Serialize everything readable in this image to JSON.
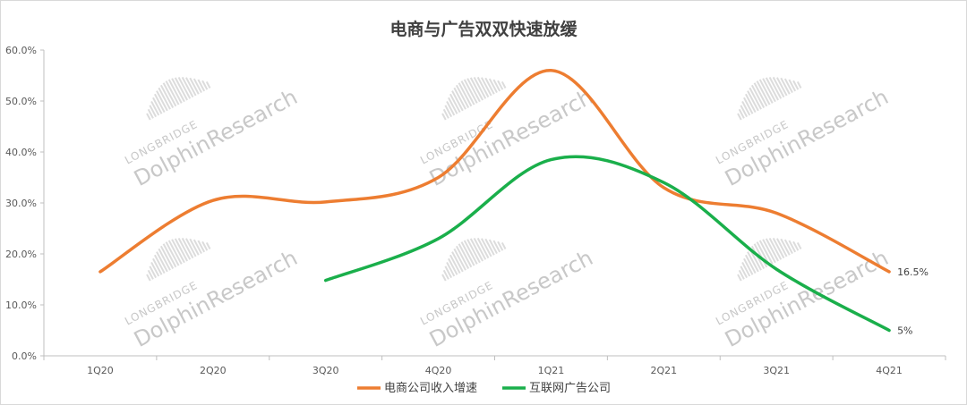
{
  "chart_data": {
    "type": "line",
    "title": "电商与广告双双快速放缓",
    "categories": [
      "1Q20",
      "2Q20",
      "3Q20",
      "4Q20",
      "1Q21",
      "2Q21",
      "3Q21",
      "4Q21"
    ],
    "ylim": [
      0,
      60
    ],
    "yticks": [
      "0.0%",
      "10.0%",
      "20.0%",
      "30.0%",
      "40.0%",
      "50.0%",
      "60.0%"
    ],
    "grid": false,
    "legend_position": "bottom",
    "series": [
      {
        "name": "电商公司收入增速",
        "color": "#ed7d31",
        "values": [
          16.5,
          30.5,
          30.2,
          35.0,
          56.0,
          33.0,
          28.0,
          16.5
        ],
        "end_label": "16.5%"
      },
      {
        "name": "互联网广告公司",
        "color": "#1aaf4b",
        "values": [
          null,
          null,
          14.8,
          23.0,
          38.5,
          34.0,
          17.0,
          5.0
        ],
        "end_label": "5%"
      }
    ]
  },
  "watermark": {
    "line1": "LONGBRIDGE",
    "line2": "DolphinResearch"
  }
}
